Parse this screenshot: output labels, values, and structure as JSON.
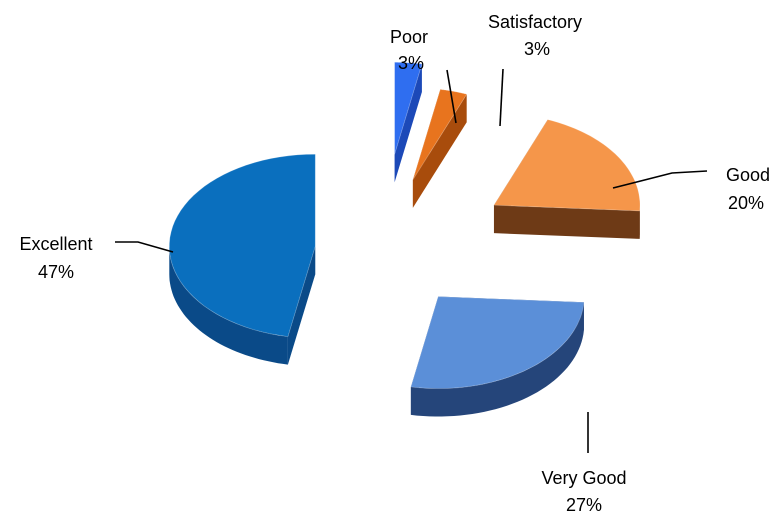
{
  "chart_data": {
    "type": "pie",
    "style": "3d-exploded",
    "categories": [
      "Poor",
      "Satisfactory",
      "Good",
      "Very Good",
      "Excellent"
    ],
    "values": [
      3,
      3,
      20,
      27,
      47
    ],
    "value_labels": [
      "3%",
      "3%",
      "20%",
      "27%",
      "47%"
    ],
    "colors": [
      "#2f6ef0",
      "#e8741e",
      "#f5964a",
      "#5b8fd8",
      "#0a6fbe"
    ],
    "side_colors": [
      "#1c49b8",
      "#a84c0c",
      "#6e3a16",
      "#25457a",
      "#0a4a88"
    ],
    "title": "",
    "legend": "none"
  }
}
